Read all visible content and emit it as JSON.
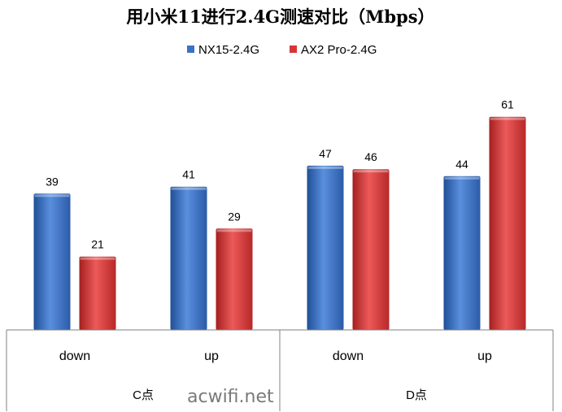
{
  "chart_data": {
    "type": "bar",
    "title": "用小米11进行2.4G测速对比（Mbps）",
    "categories": [
      "down",
      "up",
      "down",
      "up"
    ],
    "groups": [
      {
        "label": "C点",
        "categories": [
          "down",
          "up"
        ]
      },
      {
        "label": "D点",
        "categories": [
          "down",
          "up"
        ]
      }
    ],
    "series": [
      {
        "name": "NX15-2.4G",
        "color": "#3a73c4",
        "values": [
          39,
          41,
          47,
          44
        ]
      },
      {
        "name": "AX2 Pro-2.4G",
        "color": "#d63636",
        "values": [
          21,
          29,
          46,
          61
        ]
      }
    ],
    "ylim": [
      0,
      70
    ],
    "grid": false,
    "data_labels": true,
    "legend_position": "top"
  },
  "watermark": "acwifi.net"
}
